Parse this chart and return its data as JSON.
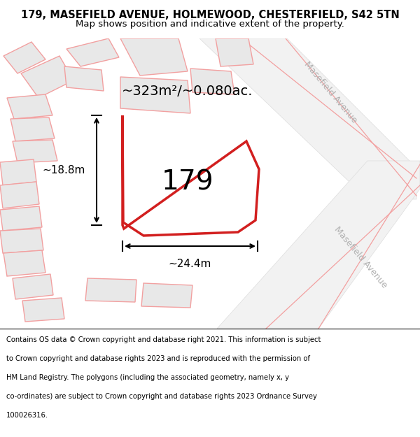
{
  "title_line1": "179, MASEFIELD AVENUE, HOLMEWOOD, CHESTERFIELD, S42 5TN",
  "title_line2": "Map shows position and indicative extent of the property.",
  "footer_lines": [
    "Contains OS data © Crown copyright and database right 2021. This information is subject",
    "to Crown copyright and database rights 2023 and is reproduced with the permission of",
    "HM Land Registry. The polygons (including the associated geometry, namely x, y",
    "co-ordinates) are subject to Crown copyright and database rights 2023 Ordnance Survey",
    "100026316."
  ],
  "road_color": "#f2a0a0",
  "plot_border_color": "#cc0000",
  "plot_label": "179",
  "area_label": "~323m²/~0.080ac.",
  "dim_width": "~24.4m",
  "dim_height": "~18.8m",
  "street_label_1": "Masefield Avenue",
  "street_label_2": "Masefield Avenue"
}
